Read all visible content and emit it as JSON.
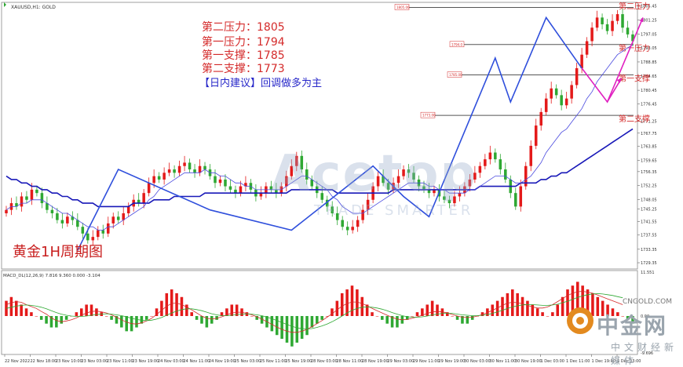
{
  "header": {
    "symbol_text": "XAUUSD,H1: GOLD",
    "macd_text": "MACD_DL(12,26,9) 7.816 9.360 0.000 -3.104"
  },
  "annotations": {
    "resistance2": "第二压力：1805",
    "resistance1": "第一压力：1794",
    "support1": "第一支撑：1785",
    "support2": "第二支撑：1773",
    "strategy": "【日内建议】回调做多为主"
  },
  "level_labels": {
    "r2": "第二压力",
    "r1": "第一压力",
    "s1": "第一支撑",
    "s2": "第二支撑"
  },
  "level_tags": [
    "1805.00",
    "1794.0",
    "1785.00",
    "1773.00"
  ],
  "chart_title": "黄金1H周期图",
  "watermark": {
    "brand": "Acetop",
    "slogan": "TRADE SMARTER"
  },
  "logo": {
    "name": "中金网",
    "sub": "中文财经新媒体",
    "url": "CNGOLD.COM"
  },
  "colors": {
    "up": "#e41a1a",
    "down": "#2ea832",
    "ma_fast": "#4a4adf",
    "ma_slow": "#1818b8",
    "zigzag": "#2f4fdc",
    "forecast": "#e020c0",
    "level": "#555555"
  },
  "chart_data": {
    "type": "candlestick",
    "symbol": "XAUUSD",
    "timeframe": "H1",
    "y_ticks": [
      1805.45,
      1801.25,
      1797.05,
      1793.05,
      1788.85,
      1784.65,
      1780.45,
      1776.45,
      1771.25,
      1767.75,
      1763.85,
      1759.65,
      1756.35,
      1752.25,
      1748.05,
      1745.25,
      1741.55,
      1737.55,
      1733.35,
      1729.35
    ],
    "ylim": [
      1727.5,
      1806.5
    ],
    "x_ticks": [
      "22 Nov 2022",
      "22 Nov 18:00",
      "23 Nov 10:00",
      "23 Nov 03:00",
      "23 Nov 11:00",
      "23 Nov 19:00",
      "24 Nov 03:00",
      "24 Nov 11:00",
      "24 Nov 19:00",
      "25 Nov 03:00",
      "25 Nov 11:00",
      "25 Nov 19:00",
      "28 Nov 03:00",
      "28 Nov 11:00",
      "28 Nov 19:00",
      "29 Nov 03:00",
      "29 Nov 11:00",
      "29 Nov 19:00",
      "30 Nov 03:00",
      "30 Nov 11:00",
      "30 Nov 19:00",
      "1 Dec 03:00",
      "1 Dec 11:00",
      "1 Dec 19:00",
      "2 Dec 03:00"
    ],
    "closes": [
      1745,
      1747,
      1746,
      1749,
      1748,
      1751,
      1750,
      1747,
      1745,
      1744,
      1742,
      1741,
      1743,
      1742,
      1740,
      1738,
      1736,
      1737,
      1739,
      1738,
      1741,
      1743,
      1742,
      1744,
      1746,
      1748,
      1747,
      1750,
      1753,
      1755,
      1754,
      1756,
      1757,
      1756,
      1758,
      1759,
      1757,
      1756,
      1758,
      1757,
      1755,
      1753,
      1754,
      1752,
      1751,
      1750,
      1752,
      1753,
      1751,
      1749,
      1750,
      1752,
      1751,
      1750,
      1752,
      1755,
      1758,
      1761,
      1757,
      1754,
      1752,
      1750,
      1748,
      1746,
      1744,
      1742,
      1740,
      1739,
      1740,
      1742,
      1745,
      1748,
      1752,
      1755,
      1753,
      1751,
      1753,
      1755,
      1757,
      1756,
      1754,
      1752,
      1751,
      1750,
      1751,
      1749,
      1748,
      1747,
      1749,
      1750,
      1752,
      1754,
      1756,
      1758,
      1760,
      1762,
      1760,
      1757,
      1754,
      1750,
      1746,
      1752,
      1758,
      1764,
      1770,
      1774,
      1778,
      1781,
      1779,
      1776,
      1778,
      1782,
      1787,
      1791,
      1795,
      1799,
      1802,
      1800,
      1798,
      1801,
      1803,
      1799,
      1797,
      1795
    ],
    "ma_fast": [
      1745,
      1746,
      1746,
      1747,
      1747,
      1748,
      1748,
      1748,
      1747,
      1746,
      1745,
      1744,
      1744,
      1743,
      1742,
      1741,
      1740,
      1740,
      1739,
      1739,
      1740,
      1740,
      1741,
      1742,
      1743,
      1744,
      1745,
      1746,
      1748,
      1749,
      1751,
      1752,
      1753,
      1754,
      1755,
      1756,
      1756,
      1756,
      1756,
      1757,
      1756,
      1756,
      1755,
      1755,
      1754,
      1753,
      1753,
      1752,
      1752,
      1751,
      1751,
      1751,
      1751,
      1751,
      1751,
      1752,
      1753,
      1754,
      1755,
      1755,
      1754,
      1753,
      1752,
      1751,
      1749,
      1748,
      1746,
      1745,
      1744,
      1744,
      1744,
      1745,
      1746,
      1747,
      1748,
      1749,
      1750,
      1751,
      1752,
      1753,
      1753,
      1753,
      1753,
      1752,
      1752,
      1751,
      1751,
      1750,
      1750,
      1750,
      1750,
      1751,
      1751,
      1752,
      1753,
      1754,
      1755,
      1755,
      1755,
      1754,
      1753,
      1753,
      1754,
      1755,
      1757,
      1759,
      1762,
      1764,
      1766,
      1768,
      1769,
      1771,
      1773,
      1775,
      1778,
      1780,
      1783,
      1785,
      1787,
      1789,
      1791,
      1792,
      1793,
      1794
    ],
    "ma_slow": [
      1755,
      1754,
      1754,
      1753,
      1753,
      1752,
      1752,
      1751,
      1751,
      1750,
      1750,
      1749,
      1749,
      1748,
      1748,
      1747,
      1747,
      1747,
      1746,
      1746,
      1746,
      1746,
      1746,
      1746,
      1746,
      1747,
      1747,
      1747,
      1747,
      1748,
      1748,
      1748,
      1748,
      1749,
      1749,
      1749,
      1749,
      1749,
      1749,
      1750,
      1750,
      1750,
      1750,
      1750,
      1750,
      1750,
      1750,
      1750,
      1750,
      1750,
      1750,
      1750,
      1750,
      1750,
      1750,
      1750,
      1751,
      1751,
      1751,
      1751,
      1751,
      1751,
      1751,
      1751,
      1751,
      1750,
      1750,
      1750,
      1750,
      1750,
      1750,
      1750,
      1750,
      1750,
      1750,
      1750,
      1751,
      1751,
      1751,
      1751,
      1751,
      1751,
      1751,
      1751,
      1751,
      1751,
      1751,
      1751,
      1751,
      1751,
      1751,
      1751,
      1751,
      1752,
      1752,
      1752,
      1752,
      1752,
      1752,
      1752,
      1752,
      1753,
      1753,
      1753,
      1753,
      1754,
      1754,
      1755,
      1755,
      1756,
      1756,
      1757,
      1758,
      1759,
      1760,
      1761,
      1762,
      1763,
      1764,
      1765,
      1766,
      1767,
      1768,
      1769
    ],
    "zigzag": [
      [
        14,
        1733
      ],
      [
        22,
        1757
      ],
      [
        40,
        1745
      ],
      [
        56,
        1739
      ],
      [
        72,
        1758
      ],
      [
        78,
        1749
      ],
      [
        83,
        1743
      ],
      [
        96,
        1790
      ],
      [
        99,
        1777
      ],
      [
        106,
        1802
      ],
      [
        113,
        1787
      ]
    ],
    "forecast": [
      [
        113,
        1787
      ],
      [
        118,
        1777
      ],
      [
        125,
        1802
      ]
    ],
    "levels": [
      {
        "name": "第二压力",
        "value": 1805
      },
      {
        "name": "第一压力",
        "value": 1794
      },
      {
        "name": "第一支撑",
        "value": 1785
      },
      {
        "name": "第二支撑",
        "value": 1773
      }
    ],
    "macd": {
      "label": "MACD_DL(12,26,9)",
      "y_ticks": [
        11.551,
        0.0,
        -9.696
      ],
      "hist": [
        4,
        5,
        4,
        3,
        2,
        1,
        0,
        -1,
        -2,
        -3,
        -3,
        -2,
        -1,
        0,
        1,
        2,
        3,
        3,
        2,
        1,
        0,
        -1,
        -2,
        -3,
        -4,
        -4,
        -3,
        -2,
        -1,
        0,
        2,
        4,
        6,
        7,
        6,
        5,
        3,
        1,
        -1,
        -2,
        -3,
        -2,
        -1,
        1,
        2,
        3,
        3,
        2,
        1,
        0,
        -1,
        -2,
        -3,
        -4,
        -5,
        -6,
        -7,
        -8,
        -7,
        -6,
        -5,
        -3,
        -2,
        -1,
        0,
        2,
        4,
        6,
        7,
        8,
        7,
        5,
        3,
        1,
        0,
        -1,
        -2,
        -3,
        -3,
        -2,
        -1,
        0,
        1,
        2,
        3,
        4,
        3,
        2,
        1,
        0,
        -1,
        -2,
        -2,
        -1,
        0,
        1,
        2,
        3,
        4,
        5,
        6,
        7,
        6,
        5,
        4,
        3,
        2,
        1,
        0,
        1,
        3,
        5,
        7,
        8,
        9,
        8,
        7,
        6,
        5,
        4,
        3,
        2,
        1,
        0,
        -1,
        -2
      ],
      "line": [
        3,
        3.5,
        3.8,
        3.6,
        3,
        2.5,
        2,
        1.2,
        0.5,
        -0.5,
        -1.2,
        -1.5,
        -1.3,
        -1,
        -0.5,
        0.2,
        0.8,
        1.2,
        1.3,
        1.1,
        0.8,
        0.3,
        -0.3,
        -1,
        -1.6,
        -2,
        -2.1,
        -1.8,
        -1.3,
        -0.6,
        0.4,
        1.5,
        2.6,
        3.3,
        3.4,
        3,
        2.4,
        1.6,
        0.8,
        0,
        -0.6,
        -0.8,
        -0.6,
        -0.2,
        0.3,
        0.8,
        1,
        1,
        0.7,
        0.3,
        -0.2,
        -0.8,
        -1.5,
        -2.2,
        -2.9,
        -3.5,
        -4,
        -4.3,
        -4.3,
        -4,
        -3.5,
        -2.8,
        -2,
        -1.2,
        -0.3,
        0.6,
        1.6,
        2.6,
        3.3,
        3.7,
        3.7,
        3.3,
        2.7,
        2,
        1.4,
        0.8,
        0.2,
        -0.4,
        -0.8,
        -1,
        -0.9,
        -0.6,
        -0.2,
        0.2,
        0.7,
        1.1,
        1.2,
        1.1,
        0.8,
        0.4,
        0,
        -0.3,
        -0.4,
        -0.3,
        0,
        0.4,
        0.9,
        1.5,
        2.1,
        2.8,
        3.4,
        3.6,
        3.5,
        3.2,
        2.8,
        2.4,
        2.1,
        2.1,
        2.4,
        3,
        3.8,
        4.6,
        5.4,
        6,
        6.4,
        6.5,
        6.3,
        6,
        5.5,
        5,
        4.5,
        4,
        3.5,
        3
      ],
      "signal": [
        2,
        2.3,
        2.6,
        2.8,
        2.9,
        2.8,
        2.6,
        2.3,
        1.9,
        1.4,
        0.9,
        0.5,
        0.2,
        0,
        -0.1,
        -0.1,
        0,
        0.2,
        0.4,
        0.5,
        0.6,
        0.5,
        0.3,
        0.1,
        -0.2,
        -0.6,
        -0.9,
        -1.1,
        -1.2,
        -1.1,
        -0.8,
        -0.4,
        0.2,
        0.8,
        1.3,
        1.7,
        1.9,
        1.9,
        1.7,
        1.4,
        1,
        0.6,
        0.3,
        0.1,
        0.1,
        0.2,
        0.4,
        0.5,
        0.6,
        0.5,
        0.3,
        0.1,
        -0.3,
        -0.7,
        -1.2,
        -1.7,
        -2.2,
        -2.7,
        -3.1,
        -3.3,
        -3.4,
        -3.3,
        -3,
        -2.6,
        -2.1,
        -1.5,
        -0.8,
        0,
        0.8,
        1.5,
        2,
        2.3,
        2.4,
        2.3,
        2.1,
        1.8,
        1.4,
        0.9,
        0.5,
        0.1,
        -0.2,
        -0.3,
        -0.3,
        -0.2,
        0,
        0.3,
        0.5,
        0.7,
        0.7,
        0.7,
        0.5,
        0.3,
        0.2,
        0.1,
        0.1,
        0.2,
        0.4,
        0.7,
        1.1,
        1.5,
        2,
        2.4,
        2.7,
        2.9,
        3,
        3,
        2.9,
        2.8,
        2.8,
        2.9,
        3.1,
        3.5,
        3.9,
        4.4,
        4.9,
        5.3,
        5.6,
        5.8,
        5.9,
        5.8,
        5.6,
        5.4,
        5.1,
        4.8
      ]
    }
  }
}
